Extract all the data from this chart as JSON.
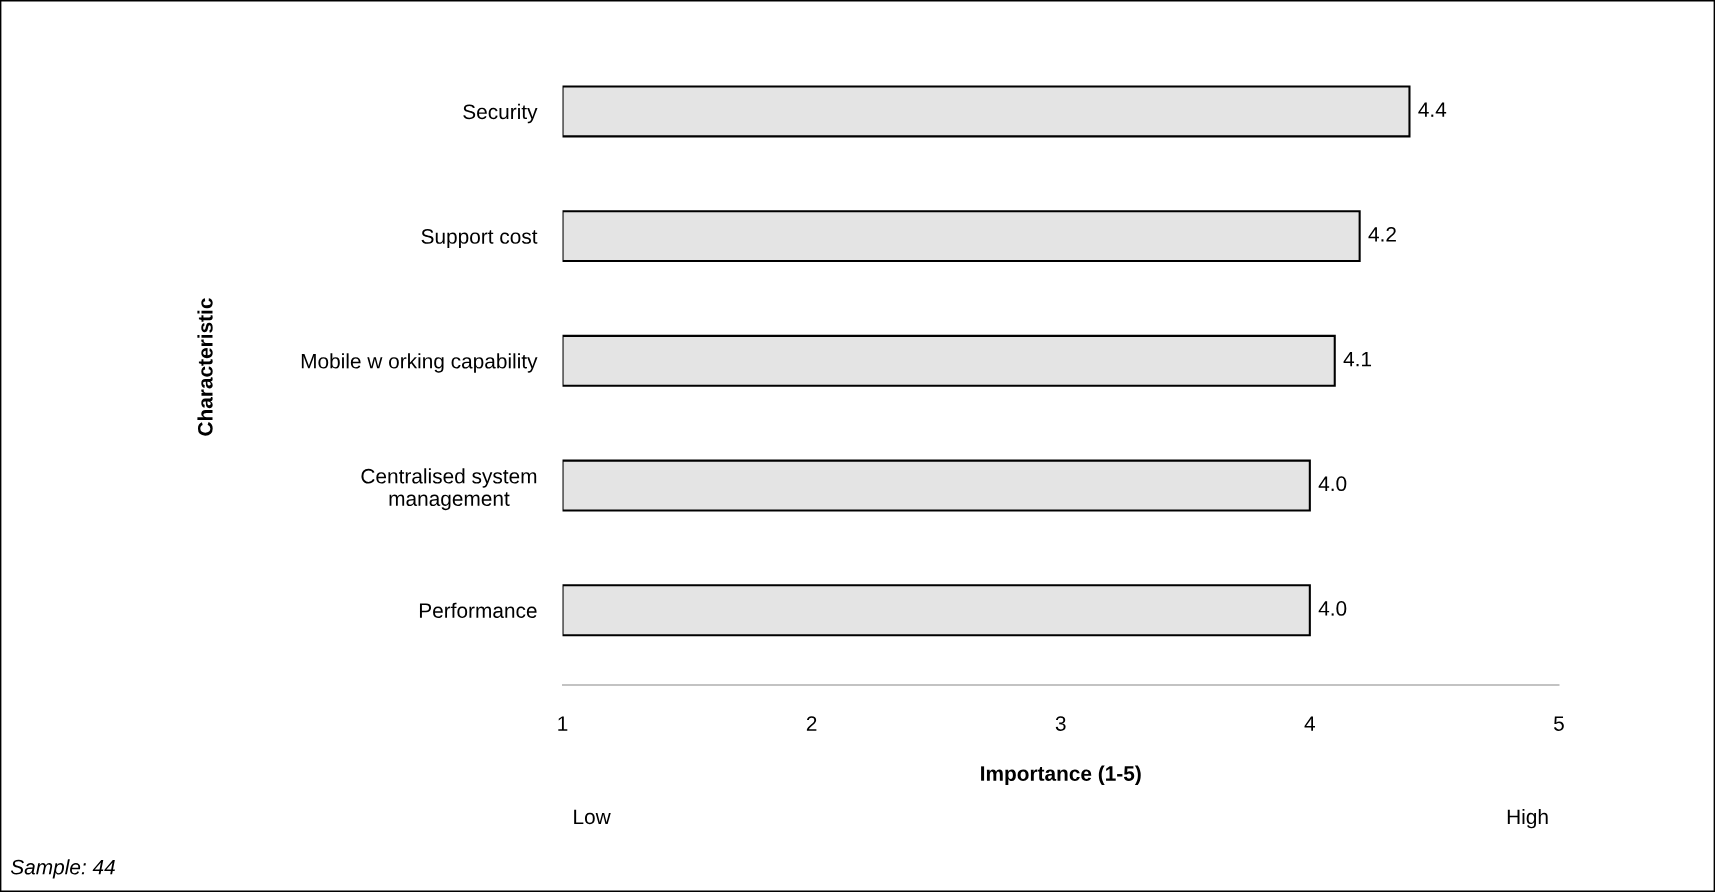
{
  "chart_data": {
    "type": "bar",
    "orientation": "horizontal",
    "xlabel": "Importance (1-5)",
    "ylabel": "Characteristic",
    "categories": [
      "Security",
      "Support cost",
      "Mobile w orking capability",
      "Centralised system\nmanagement",
      "Performance"
    ],
    "values": [
      4.4,
      4.2,
      4.1,
      4.0,
      4.0
    ],
    "value_labels": [
      "4.4",
      "4.2",
      "4.1",
      "4.0",
      "4.0"
    ],
    "color": "#e4e4e4",
    "xlim": [
      1,
      5
    ],
    "xticks": [
      1,
      2,
      3,
      4,
      5
    ],
    "grid": false,
    "annotations": [
      "Low",
      "High",
      "Sample: 44"
    ]
  }
}
